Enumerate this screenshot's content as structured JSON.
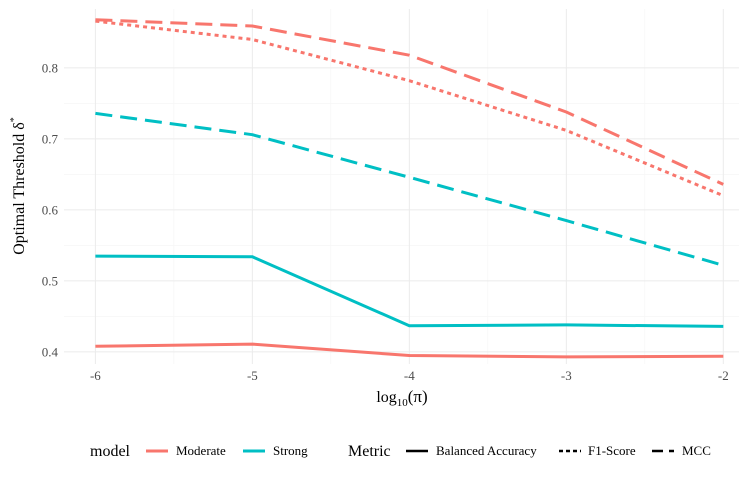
{
  "chart_data": {
    "type": "line",
    "title": "",
    "xlabel_base": "log",
    "xlabel_sub": "10",
    "xlabel_arg": "(π)",
    "ylabel": "Optimal Threshold δ",
    "ylabel_sup": "*",
    "x": [
      -6,
      -5,
      -4,
      -3,
      -2
    ],
    "x_tick_labels": [
      "-6",
      "-5",
      "-4",
      "-3",
      "-2"
    ],
    "y_ticks": [
      0.4,
      0.5,
      0.6,
      0.7,
      0.8
    ],
    "y_tick_labels": [
      "0.4",
      "0.5",
      "0.6",
      "0.7",
      "0.8"
    ],
    "xlim": [
      -6.2,
      -1.9
    ],
    "ylim": [
      0.383,
      0.883
    ],
    "grid": true,
    "colors": {
      "Moderate": "#F8766D",
      "Strong": "#00BFC4"
    },
    "series": [
      {
        "model": "Moderate",
        "metric": "Balanced Accuracy",
        "values": [
          0.408,
          0.411,
          0.395,
          0.393,
          0.394
        ]
      },
      {
        "model": "Moderate",
        "metric": "F1-Score",
        "values": [
          0.866,
          0.84,
          0.782,
          0.712,
          0.62
        ]
      },
      {
        "model": "Moderate",
        "metric": "MCC",
        "values": [
          0.868,
          0.859,
          0.818,
          0.738,
          0.636
        ]
      },
      {
        "model": "Strong",
        "metric": "Balanced Accuracy",
        "values": [
          0.535,
          0.534,
          0.437,
          0.438,
          0.436
        ]
      },
      {
        "model": "Strong",
        "metric": "MCC",
        "values": [
          0.736,
          0.706,
          0.646,
          0.585,
          0.522
        ]
      }
    ],
    "legend": {
      "position": "bottom",
      "model_title": "model",
      "model_items": [
        "Moderate",
        "Strong"
      ],
      "metric_title": "Metric",
      "metric_items": [
        "Balanced Accuracy",
        "F1-Score",
        "MCC"
      ]
    }
  }
}
